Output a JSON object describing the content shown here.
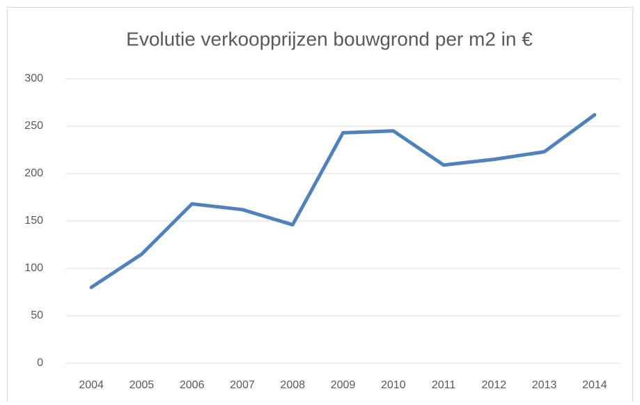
{
  "chart_data": {
    "type": "line",
    "title": "Evolutie verkoopprijzen bouwgrond per m2 in €",
    "categories": [
      "2004",
      "2005",
      "2006",
      "2007",
      "2008",
      "2009",
      "2010",
      "2011",
      "2012",
      "2013",
      "2014"
    ],
    "series": [
      {
        "name": "Evolutie verkoopprijzen bouwgrond per m2 in €",
        "color": "#4f81bd",
        "values": [
          80,
          115,
          168,
          162,
          146,
          243,
          245,
          209,
          215,
          223,
          262
        ]
      }
    ],
    "ylim": [
      0,
      300
    ],
    "yticks": [
      0,
      50,
      100,
      150,
      200,
      250,
      300
    ],
    "grid": true
  }
}
